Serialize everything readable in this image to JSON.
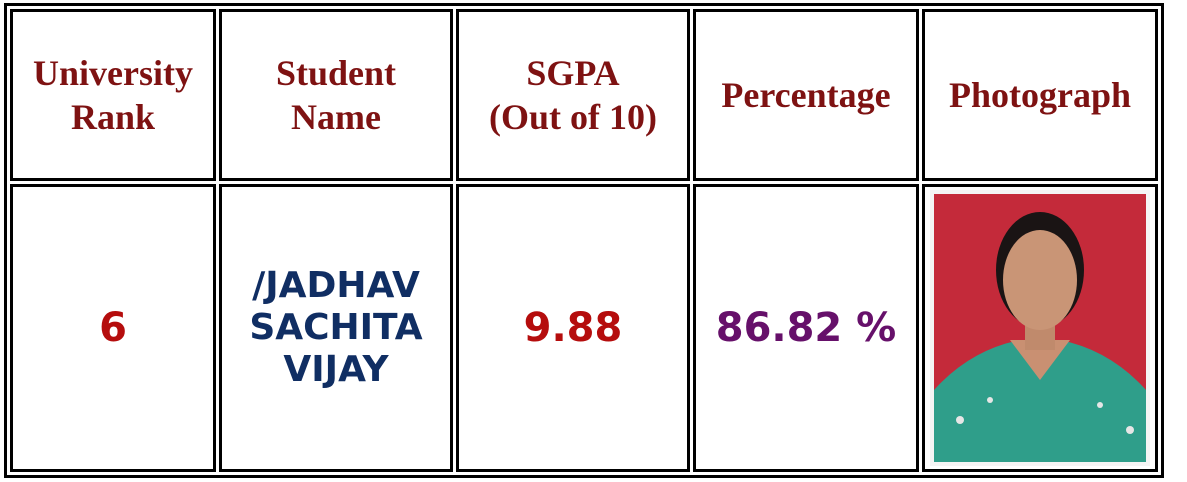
{
  "table": {
    "header": [
      [
        "University",
        "Rank"
      ],
      [
        "Student",
        "Name"
      ],
      [
        "SGPA",
        "(Out of 10)"
      ],
      [
        "Percentage"
      ],
      [
        "Photograph"
      ]
    ],
    "rows": [
      [
        [
          "6"
        ],
        [
          "/JADHAV",
          "SACHITA",
          "VIJAY"
        ],
        [
          "9.88"
        ],
        [
          "86.82 %"
        ]
      ]
    ]
  }
}
